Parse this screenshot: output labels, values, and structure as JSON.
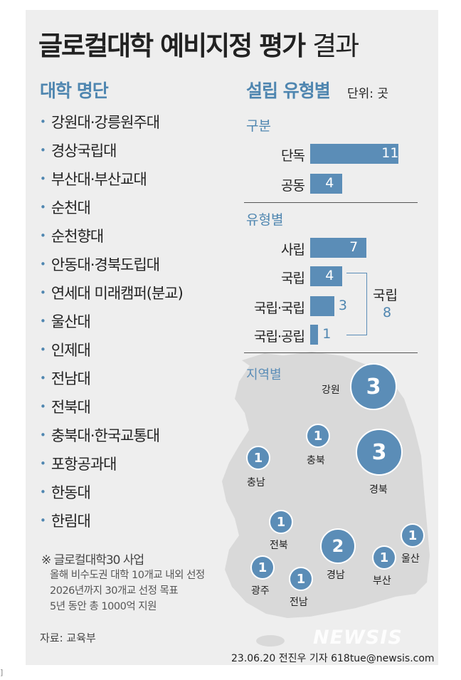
{
  "title": {
    "bold": "글로컬대학 예비지정 평가",
    "light": "결과"
  },
  "university_list": {
    "heading": "대학 명단",
    "items": [
      "강원대·강릉원주대",
      "경상국립대",
      "부산대·부산교대",
      "순천대",
      "순천향대",
      "안동대·경북도립대",
      "연세대 미래캠퍼(분교)",
      "울산대",
      "인제대",
      "전남대",
      "전북대",
      "충북대·한국교통대",
      "포항공과대",
      "한동대",
      "한림대"
    ]
  },
  "note": {
    "heading": "※ 글로컬대학30 사업",
    "lines": [
      "올해 비수도권 대학 10개교 내외 선정",
      "2026년까지 30개교 선정 목표",
      "5년 동안 총 1000억 지원"
    ]
  },
  "source": "자료: 교육부",
  "credit": "23.06.20 전진우 기자 618tue@newsis.com",
  "watermark": "NEWSIS",
  "edge_char": "]",
  "colors": {
    "accent": "#5b8db7",
    "heading": "#4f86b0",
    "map": "#d9d9d9"
  },
  "chart_data": [
    {
      "type": "bar",
      "title": "설립 유형별",
      "unit": "단위: 곳",
      "subtitle": "구분",
      "categories": [
        "단독",
        "공동"
      ],
      "values": [
        11,
        4
      ]
    },
    {
      "type": "bar",
      "subtitle": "유형별",
      "categories": [
        "사립",
        "국립",
        "국립·국립",
        "국립·공립"
      ],
      "values": [
        7,
        4,
        3,
        1
      ],
      "annotation": {
        "label": "국립",
        "value": 8
      }
    },
    {
      "type": "bubble",
      "subtitle": "지역별",
      "regions": [
        {
          "name": "강원",
          "value": 3
        },
        {
          "name": "충북",
          "value": 1
        },
        {
          "name": "충남",
          "value": 1
        },
        {
          "name": "경북",
          "value": 3
        },
        {
          "name": "전북",
          "value": 1
        },
        {
          "name": "경남",
          "value": 2
        },
        {
          "name": "울산",
          "value": 1
        },
        {
          "name": "광주",
          "value": 1
        },
        {
          "name": "전남",
          "value": 1
        },
        {
          "name": "부산",
          "value": 1
        }
      ]
    }
  ]
}
